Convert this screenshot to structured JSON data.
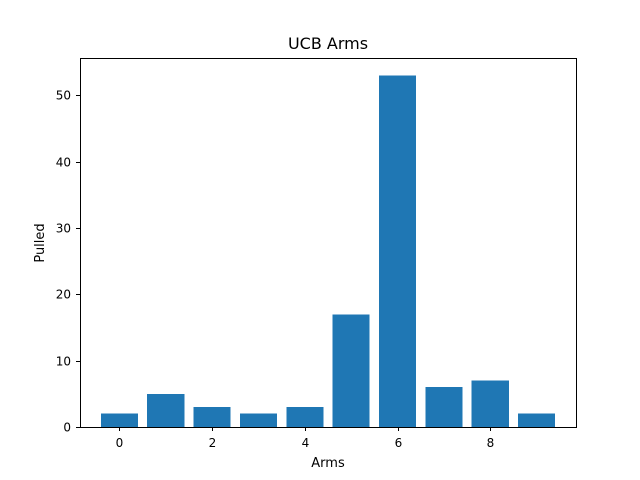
{
  "colors": {
    "bar": "#1f77b4"
  },
  "chart_data": {
    "type": "bar",
    "title": "UCB Arms",
    "xlabel": "Arms",
    "ylabel": "Pulled",
    "categories": [
      0,
      1,
      2,
      3,
      4,
      5,
      6,
      7,
      8,
      9
    ],
    "values": [
      2,
      5,
      3,
      2,
      3,
      17,
      53,
      6,
      7,
      2
    ],
    "xlim": [
      -0.85,
      9.85
    ],
    "ylim": [
      0,
      55.65
    ],
    "x_ticks": [
      0,
      2,
      4,
      6,
      8
    ],
    "y_ticks": [
      0,
      10,
      20,
      30,
      40,
      50
    ],
    "grid": false,
    "legend": "none"
  }
}
